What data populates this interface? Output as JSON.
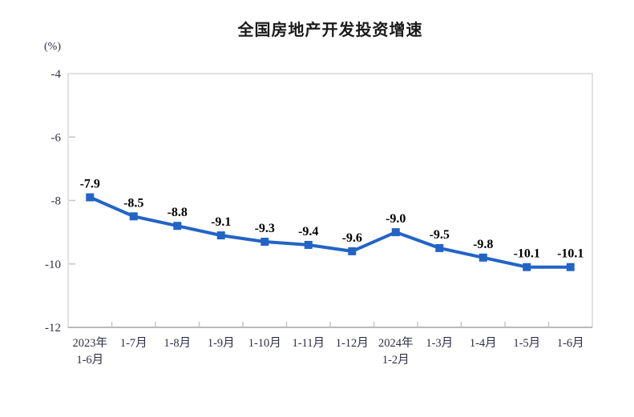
{
  "chart_data": {
    "type": "line",
    "title": "全国房地产开发投资增速",
    "unit_label": "(%)",
    "categories": [
      "2023年\n1-6月",
      "1-7月",
      "1-8月",
      "1-9月",
      "1-10月",
      "1-11月",
      "1-12月",
      "2024年\n1-2月",
      "1-3月",
      "1-4月",
      "1-5月",
      "1-6月"
    ],
    "values": [
      -7.9,
      -8.5,
      -8.8,
      -9.1,
      -9.3,
      -9.4,
      -9.6,
      -9.0,
      -9.5,
      -9.8,
      -10.1,
      -10.1
    ],
    "data_labels": [
      "-7.9",
      "-8.5",
      "-8.8",
      "-9.1",
      "-9.3",
      "-9.4",
      "-9.6",
      "-9.0",
      "-9.5",
      "-9.8",
      "-10.1",
      "-10.1"
    ],
    "ylim": [
      -12,
      -4
    ],
    "y_ticks": [
      -4,
      -6,
      -8,
      -10,
      -12
    ],
    "y_tick_labels": [
      "-4",
      "-6",
      "-8",
      "-10",
      "-12"
    ],
    "grid": false,
    "legend": "none",
    "line_color": "#2264C6",
    "marker": "square",
    "data_label_color": "#000000",
    "axis_text_color": "#2E2E44",
    "plot_border_color": "#D9D9D9",
    "axis_line_color": "#A8A8A8",
    "tick_color": "#C6C6C6"
  }
}
